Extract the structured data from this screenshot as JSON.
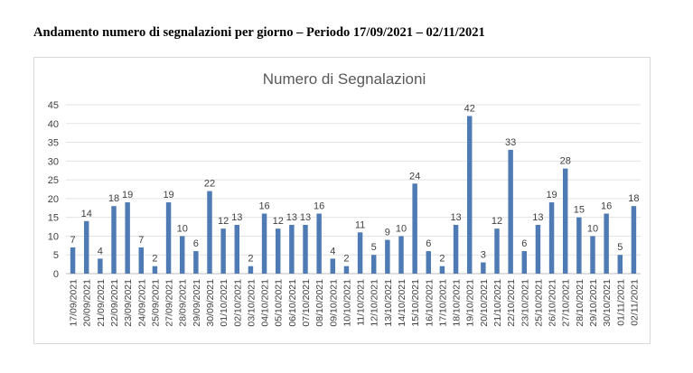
{
  "heading": "Andamento numero di segnalazioni per giorno – Periodo 17/09/2021 – 02/11/2021",
  "chart_data": {
    "type": "bar",
    "title": "Numero di Segnalazioni",
    "xlabel": "",
    "ylabel": "",
    "ylim": [
      0,
      45
    ],
    "yticks": [
      0,
      5,
      10,
      15,
      20,
      25,
      30,
      35,
      40,
      45
    ],
    "grid": true,
    "legend": "none",
    "bar_color": "#4f7bb4",
    "categories": [
      "17/09/2021",
      "20/09/2021",
      "21/09/2021",
      "22/09/2021",
      "23/09/2021",
      "24/09/2021",
      "25/09/2021",
      "27/09/2021",
      "28/09/2021",
      "29/09/2021",
      "30/09/2021",
      "01/10/2021",
      "02/10/2021",
      "03/10/2021",
      "04/10/2021",
      "05/10/2021",
      "06/10/2021",
      "07/10/2021",
      "08/10/2021",
      "09/10/2021",
      "10/10/2021",
      "11/10/2021",
      "12/10/2021",
      "13/10/2021",
      "14/10/2021",
      "15/10/2021",
      "16/10/2021",
      "17/10/2021",
      "18/10/2021",
      "19/10/2021",
      "20/10/2021",
      "21/10/2021",
      "22/10/2021",
      "23/10/2021",
      "25/10/2021",
      "26/10/2021",
      "27/10/2021",
      "28/10/2021",
      "29/10/2021",
      "30/10/2021",
      "01/11/2021",
      "02/11/2021"
    ],
    "values": [
      7,
      14,
      4,
      18,
      19,
      7,
      2,
      19,
      10,
      6,
      22,
      12,
      13,
      2,
      16,
      12,
      13,
      13,
      16,
      4,
      2,
      11,
      5,
      9,
      10,
      24,
      6,
      2,
      13,
      42,
      3,
      12,
      33,
      6,
      13,
      19,
      28,
      15,
      10,
      16,
      5,
      18
    ]
  }
}
